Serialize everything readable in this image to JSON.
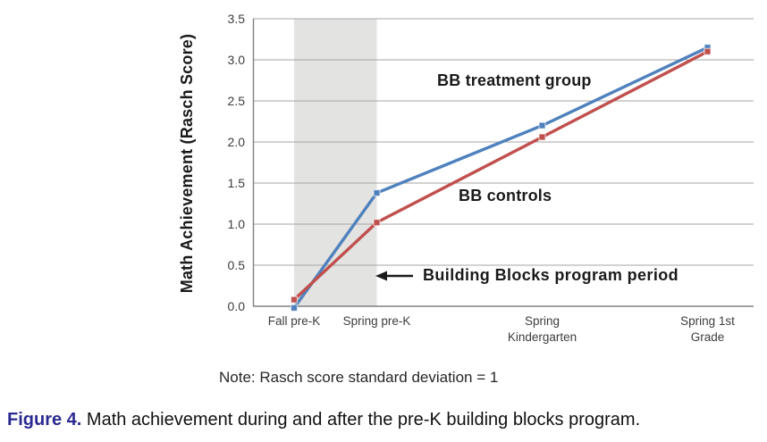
{
  "chart_data": {
    "type": "line",
    "y_axis_title": "Math Achievement (Rasch Score)",
    "categories": [
      "Fall pre-K",
      "Spring pre-K",
      "Spring\nKindergarten",
      "Spring 1st\nGrade"
    ],
    "x_years": [
      0,
      0.5,
      1.5,
      2.5
    ],
    "series": [
      {
        "name": "BB treatment group",
        "color": "#4f81bd",
        "values": [
          -0.02,
          1.38,
          2.2,
          3.15
        ]
      },
      {
        "name": "BB controls",
        "color": "#c0504d",
        "values": [
          0.08,
          1.02,
          2.06,
          3.1
        ]
      }
    ],
    "ylim": [
      0,
      3.5
    ],
    "y_tick_step": 0.5,
    "y_ticks": [
      "0.0",
      "0.5",
      "1.0",
      "1.5",
      "2.0",
      "2.5",
      "3.0",
      "3.5"
    ],
    "grid": "horizontal",
    "legend_position": "inline-labels",
    "shaded_region": {
      "from_x_year": 0,
      "to_x_year": 0.5,
      "color": "#e3e3e1",
      "label": "Building Blocks program period"
    }
  },
  "note": "Note: Rasch score standard deviation = 1",
  "caption": {
    "label": "Figure 4.",
    "text": "Math achievement during and after the pre-K building blocks program."
  },
  "colors": {
    "treatment": "#4f81bd",
    "controls": "#c0504d",
    "shaded_band": "#e3e3e1",
    "gridline": "#a6a6a6",
    "axis_line": "#808080",
    "figure_label": "#2a2a90"
  }
}
